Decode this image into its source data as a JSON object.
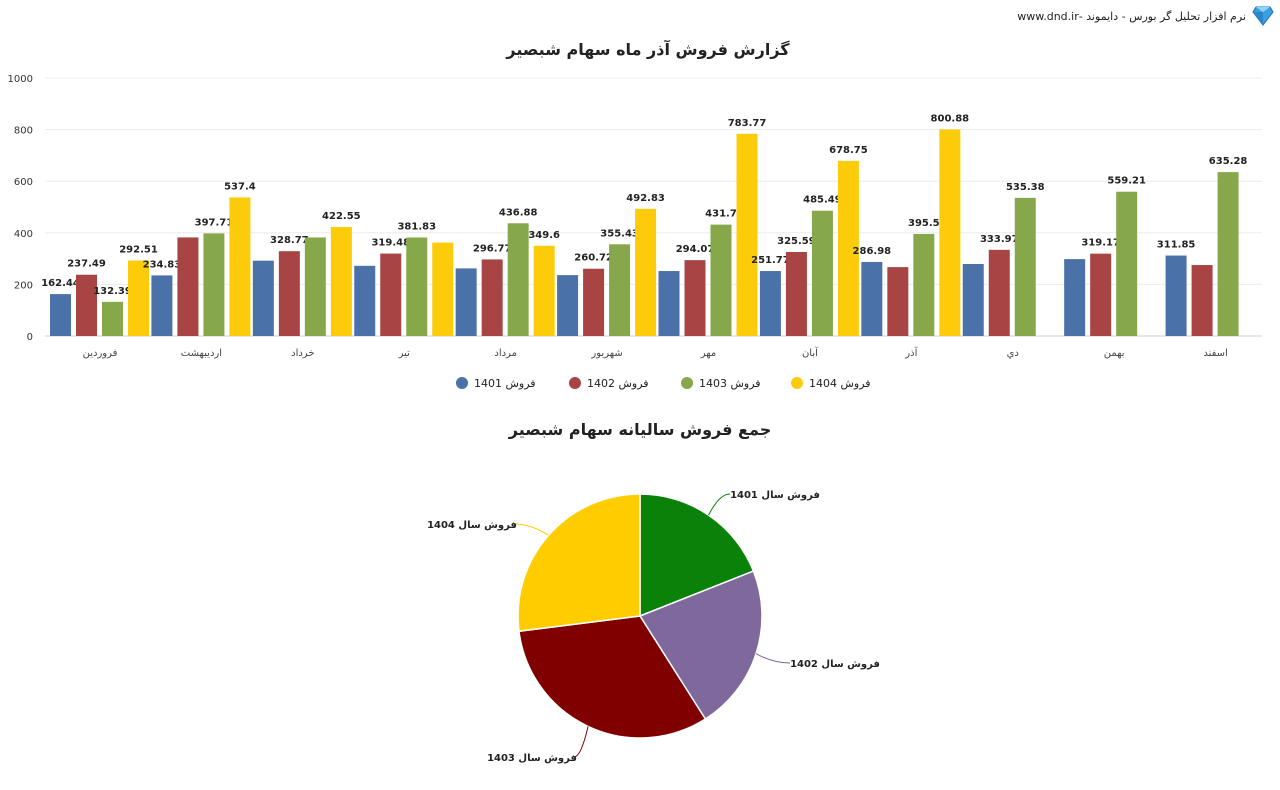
{
  "header": {
    "brand_text": "نرم افزار تحلیل گر بورس - دایموند -www.dnd.ir",
    "logo_icon": "diamond-icon"
  },
  "chart_data": [
    {
      "type": "bar",
      "title": "گزارش فروش آذر ماه سهام شبصیر",
      "categories": [
        "فروردین",
        "اردیبهشت",
        "خرداد",
        "تیر",
        "مرداد",
        "شهریور",
        "مهر",
        "آبان",
        "آذر",
        "دي",
        "بهمن",
        "اسفند"
      ],
      "yticks": [
        "0",
        "200",
        "400",
        "600",
        "800",
        "1000"
      ],
      "ylim": [
        0,
        1000
      ],
      "grid": true,
      "legend_position": "bottom",
      "series": [
        {
          "name": "فروش 1401",
          "color": "#4a72a8",
          "values": [
            162.44,
            234.83,
            292,
            272,
            262,
            236,
            251.77,
            251.77,
            286.98,
            279,
            298,
            311.85
          ],
          "labels": [
            "162.44",
            "234.83",
            "",
            "",
            "",
            "",
            "",
            "251.77",
            "286.98",
            "",
            "",
            "311.85"
          ]
        },
        {
          "name": "فروش 1402",
          "color": "#a84444",
          "values": [
            237.49,
            382,
            328.77,
            319.48,
            296.77,
            260.72,
            294.07,
            325.59,
            267,
            333.97,
            319.17,
            275
          ],
          "labels": [
            "237.49",
            "",
            "328.77",
            "319.48",
            "296.77",
            "260.72",
            "294.07",
            "325.59",
            "",
            "333.97",
            "319.17",
            ""
          ]
        },
        {
          "name": "فروش 1403",
          "color": "#86a84a",
          "values": [
            132.39,
            397.71,
            382,
            381.83,
            436.88,
            355.43,
            431.7,
            485.49,
            395.5,
            535.38,
            559.21,
            635.28
          ],
          "labels": [
            "132.39",
            "397.71",
            "",
            "381.83",
            "436.88",
            "355.43",
            "431.7",
            "485.49",
            "395.5",
            "535.38",
            "559.21",
            "635.28"
          ]
        },
        {
          "name": "فروش 1404",
          "color": "#fccc0a",
          "values": [
            292.51,
            537.4,
            422.55,
            362,
            349.6,
            492.83,
            783.77,
            678.75,
            800.88,
            null,
            null,
            null
          ],
          "labels": [
            "292.51",
            "537.4",
            "422.55",
            "",
            "349.6",
            "492.83",
            "783.77",
            "678.75",
            "800.88",
            "",
            "",
            ""
          ]
        }
      ]
    },
    {
      "type": "pie",
      "title": "جمع فروش سالیانه سهام شبصیر",
      "slices": [
        {
          "name": "فروش سال 1401",
          "value": 19,
          "color": "#0a820a"
        },
        {
          "name": "فروش سال 1402",
          "value": 22,
          "color": "#7e689c"
        },
        {
          "name": "فروش سال 1403",
          "value": 32,
          "color": "#800000"
        },
        {
          "name": "فروش سال 1404",
          "value": 27,
          "color": "#ffcc00"
        }
      ]
    }
  ]
}
